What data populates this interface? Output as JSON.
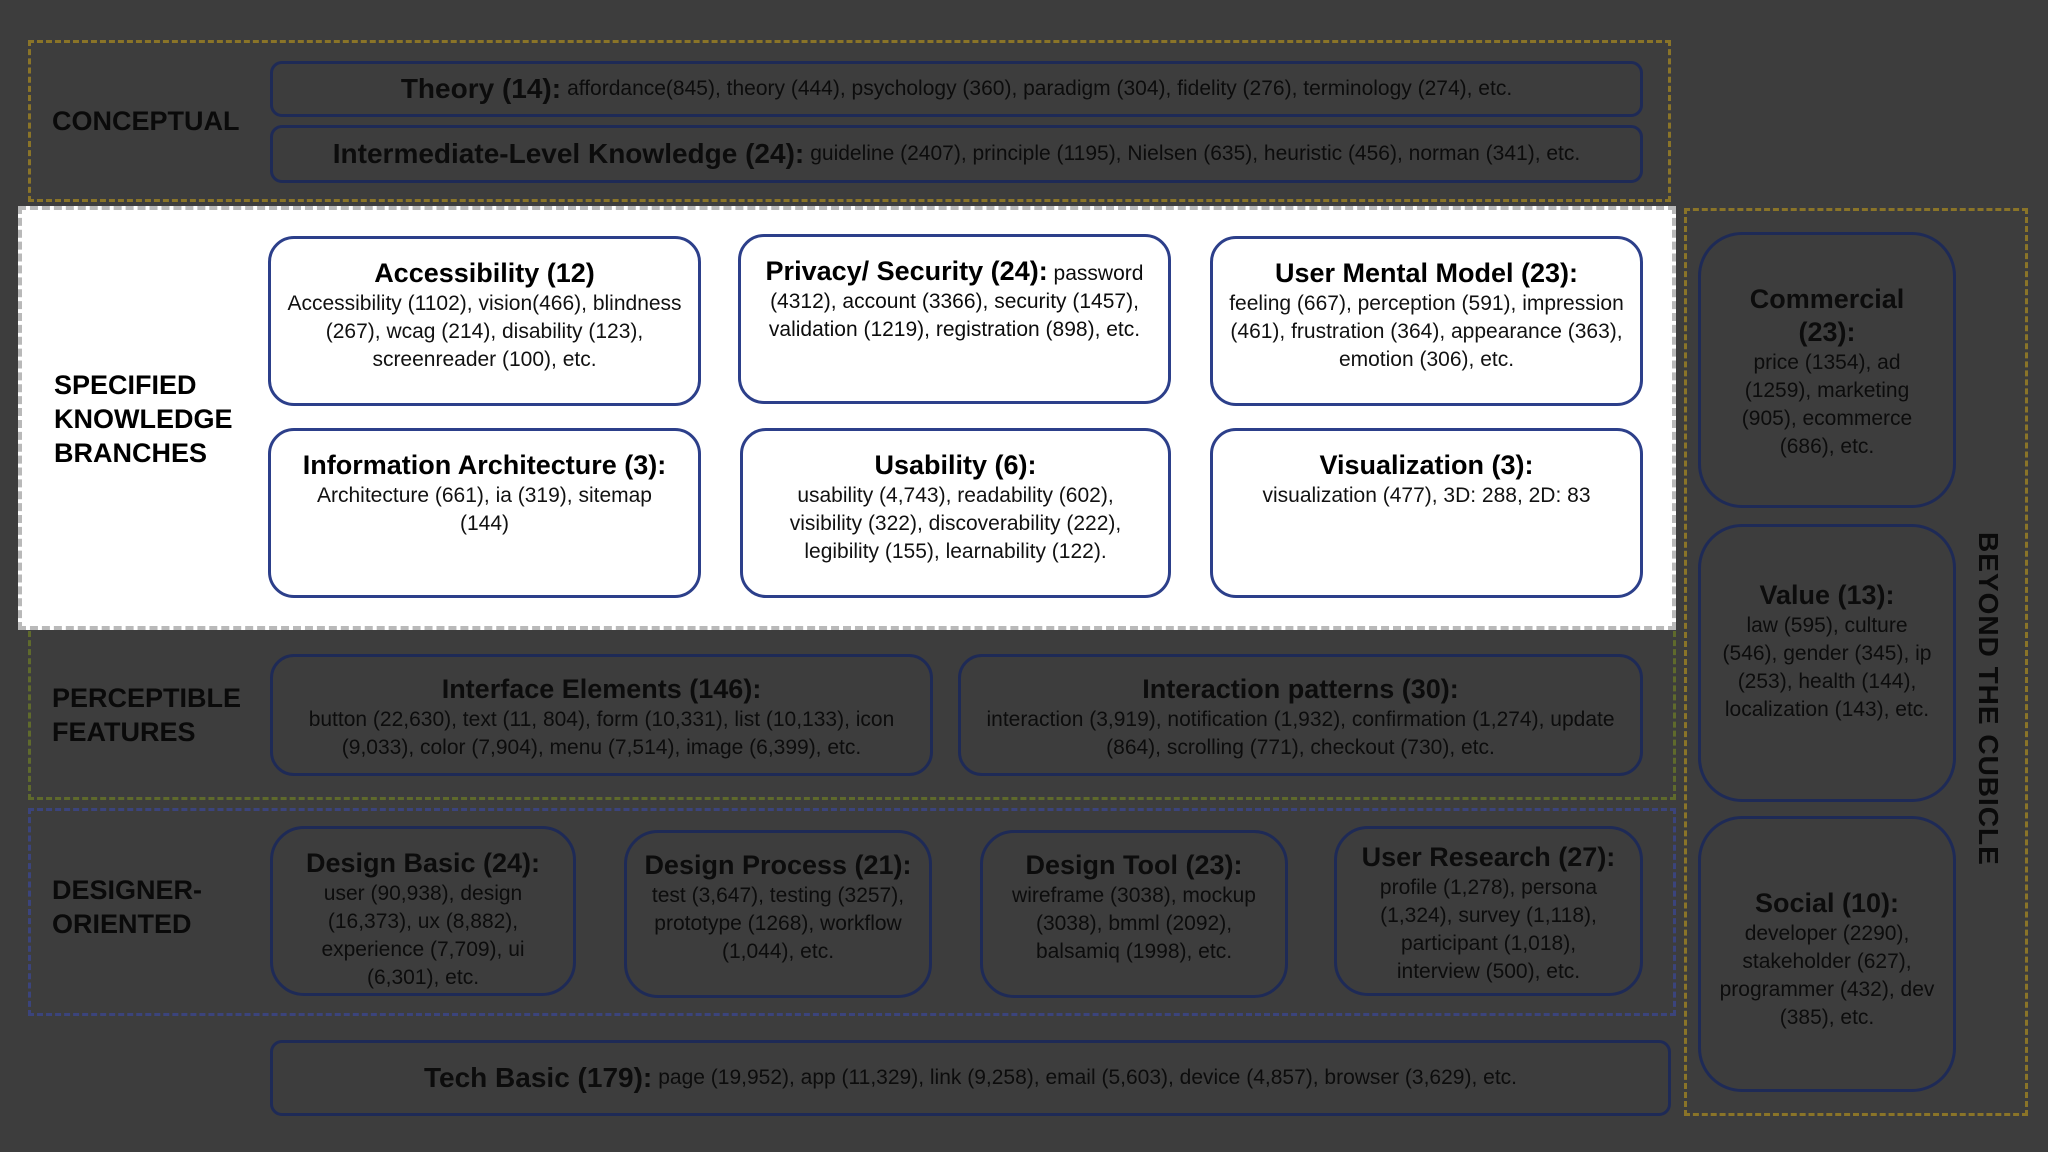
{
  "sections": {
    "conceptual": "CONCEPTUAL",
    "specified": "SPECIFIED\nKNOWLEDGE\nBRANCHES",
    "perceptible": "PERCEPTIBLE\nFEATURES",
    "designer": "DESIGNER-\nORIENTED",
    "beyond": "BEYOND THE CUBICLE"
  },
  "conceptual": {
    "theory": {
      "title": "Theory (14):",
      "body": "affordance(845), theory (444), psychology (360), paradigm (304), fidelity (276), terminology (274), etc."
    },
    "intermediate": {
      "title": "Intermediate-Level Knowledge (24):",
      "body": "guideline (2407), principle (1195), Nielsen (635), heuristic (456), norman (341), etc."
    }
  },
  "specified": {
    "accessibility": {
      "title": "Accessibility (12)",
      "body": "Accessibility (1102), vision(466), blindness (267), wcag (214), disability (123), screenreader (100), etc."
    },
    "privacy": {
      "title": "Privacy/ Security (24):",
      "body": "password (4312), account (3366), security (1457), validation (1219), registration (898), etc."
    },
    "mental": {
      "title": "User Mental Model (23):",
      "body": "feeling (667), perception (591), impression (461), frustration (364), appearance (363), emotion (306), etc."
    },
    "ia": {
      "title": "Information Architecture (3):",
      "body": "Architecture (661), ia (319), sitemap (144)"
    },
    "usability": {
      "title": "Usability (6):",
      "body": "usability (4,743), readability (602), visibility (322), discoverability (222), legibility (155), learnability (122)."
    },
    "visualization": {
      "title": "Visualization (3):",
      "body": "visualization (477), 3D: 288, 2D: 83"
    }
  },
  "perceptible": {
    "interface": {
      "title": "Interface Elements (146):",
      "body": "button (22,630), text (11, 804), form (10,331), list (10,133), icon (9,033), color (7,904), menu (7,514), image (6,399), etc."
    },
    "patterns": {
      "title": "Interaction patterns (30):",
      "body": "interaction (3,919), notification (1,932), confirmation (1,274), update (864), scrolling (771), checkout (730), etc."
    }
  },
  "designer": {
    "basic": {
      "title": "Design Basic (24):",
      "body": "user (90,938), design (16,373), ux (8,882), experience (7,709), ui (6,301), etc."
    },
    "process": {
      "title": "Design Process (21):",
      "body": "test (3,647), testing (3257), prototype (1268), workflow (1,044), etc."
    },
    "tool": {
      "title": "Design Tool (23):",
      "body": "wireframe (3038), mockup (3038), bmml (2092), balsamiq (1998), etc."
    },
    "research": {
      "title": "User Research (27):",
      "body": "profile (1,278), persona (1,324), survey (1,118), participant (1,018), interview (500), etc."
    }
  },
  "tech": {
    "title": "Tech Basic (179):",
    "body": "page (19,952), app (11,329), link (9,258), email (5,603), device (4,857), browser (3,629), etc."
  },
  "beyond": {
    "commercial": {
      "title": "Commercial (23):",
      "body": "price (1354), ad (1259), marketing (905), ecommerce (686), etc."
    },
    "value": {
      "title": "Value (13):",
      "body": "law (595), culture (546), gender (345), ip (253), health (144), localization (143), etc."
    },
    "social": {
      "title": "Social (10):",
      "body": "developer (2290), stakeholder (627), programmer (432), dev (385), etc."
    }
  }
}
